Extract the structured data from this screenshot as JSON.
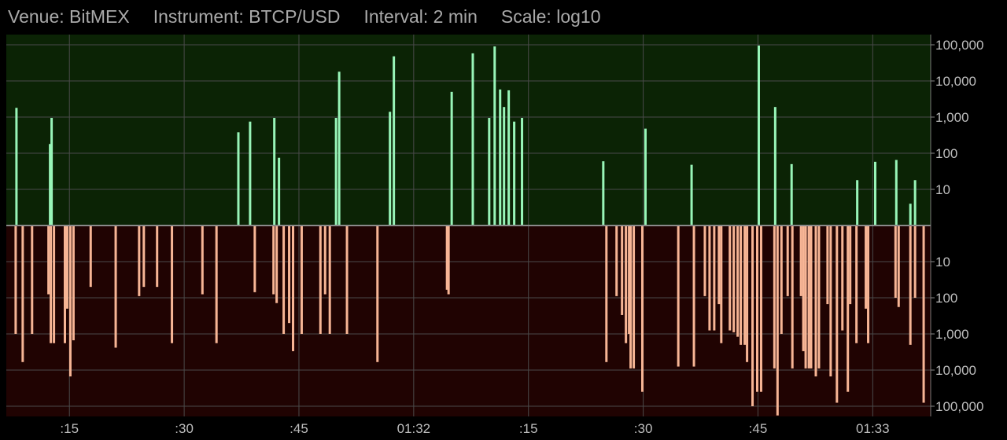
{
  "header": {
    "venue": "Venue: BitMEX",
    "instrument": "Instrument: BTCP/USD",
    "interval": "Interval: 2 min",
    "scale": "Scale: log10"
  },
  "colors": {
    "upper_bg": "#0b2305",
    "lower_bg": "#200302",
    "buy": "#98f5b8",
    "sell": "#f7b595",
    "grid": "#4a4a4a",
    "axis_text": "#bdbdbd"
  },
  "chart_data": {
    "type": "bar",
    "scale": "log10",
    "grid": true,
    "x_ticks": [
      ":15",
      ":30",
      ":45",
      "01:32",
      ":15",
      ":30",
      ":45",
      "01:33"
    ],
    "y_ticks_upper": [
      "100,000",
      "10,000",
      "1,000",
      "100",
      "10"
    ],
    "y_ticks_lower": [
      "10",
      "100",
      "1,000",
      "10,000",
      "100,000"
    ],
    "x_range": [
      0,
      1183
    ],
    "series": [
      {
        "side": "up",
        "points": [
          [
            13,
            1800
          ],
          [
            56,
            180
          ],
          [
            58,
            950
          ],
          [
            297,
            380
          ],
          [
            312,
            750
          ],
          [
            343,
            950
          ],
          [
            349,
            75
          ],
          [
            422,
            950
          ],
          [
            426,
            18000
          ],
          [
            491,
            1400
          ],
          [
            496,
            48000
          ],
          [
            570,
            5000
          ],
          [
            597,
            58000
          ],
          [
            618,
            950
          ],
          [
            625,
            90000
          ],
          [
            632,
            5800
          ],
          [
            637,
            1900
          ],
          [
            643,
            5500
          ],
          [
            650,
            750
          ],
          [
            660,
            950
          ],
          [
            764,
            60
          ],
          [
            818,
            480
          ],
          [
            877,
            48
          ],
          [
            963,
            95000
          ],
          [
            984,
            1900
          ],
          [
            1005,
            50
          ],
          [
            1089,
            18
          ],
          [
            1112,
            58
          ],
          [
            1139,
            65
          ],
          [
            1157,
            4
          ],
          [
            1163,
            18
          ]
        ]
      },
      {
        "side": "down",
        "points": [
          [
            12,
            1000
          ],
          [
            21,
            6000
          ],
          [
            33,
            1000
          ],
          [
            54,
            80
          ],
          [
            57,
            1800
          ],
          [
            61,
            1800
          ],
          [
            75,
            1800
          ],
          [
            78,
            200
          ],
          [
            82,
            15000
          ],
          [
            86,
            1500
          ],
          [
            108,
            50
          ],
          [
            140,
            2400
          ],
          [
            170,
            90
          ],
          [
            176,
            50
          ],
          [
            193,
            50
          ],
          [
            212,
            1800
          ],
          [
            251,
            80
          ],
          [
            269,
            1800
          ],
          [
            318,
            70
          ],
          [
            342,
            80
          ],
          [
            346,
            140
          ],
          [
            355,
            1000
          ],
          [
            362,
            500
          ],
          [
            367,
            3000
          ],
          [
            378,
            1000
          ],
          [
            402,
            1000
          ],
          [
            408,
            80
          ],
          [
            414,
            1000
          ],
          [
            436,
            1000
          ],
          [
            475,
            6000
          ],
          [
            564,
            60
          ],
          [
            566,
            80
          ],
          [
            768,
            6000
          ],
          [
            781,
            90
          ],
          [
            788,
            300
          ],
          [
            793,
            1800
          ],
          [
            797,
            1000
          ],
          [
            799,
            9000
          ],
          [
            803,
            9000
          ],
          [
            814,
            40000
          ],
          [
            860,
            8000
          ],
          [
            880,
            8000
          ],
          [
            894,
            90
          ],
          [
            900,
            800
          ],
          [
            906,
            800
          ],
          [
            912,
            150
          ],
          [
            915,
            1800
          ],
          [
            926,
            800
          ],
          [
            931,
            900
          ],
          [
            936,
            1200
          ],
          [
            940,
            2000
          ],
          [
            945,
            2000
          ],
          [
            948,
            6000
          ],
          [
            955,
            100000
          ],
          [
            961,
            40000
          ],
          [
            966,
            40000
          ],
          [
            983,
            9000
          ],
          [
            987,
            180000
          ],
          [
            992,
            1000
          ],
          [
            1000,
            90
          ],
          [
            1006,
            9000
          ],
          [
            1017,
            90
          ],
          [
            1020,
            3000
          ],
          [
            1023,
            9000
          ],
          [
            1027,
            9000
          ],
          [
            1030,
            9000
          ],
          [
            1036,
            15000
          ],
          [
            1040,
            9000
          ],
          [
            1051,
            150
          ],
          [
            1055,
            15000
          ],
          [
            1063,
            80000
          ],
          [
            1070,
            800
          ],
          [
            1077,
            40000
          ],
          [
            1080,
            150
          ],
          [
            1088,
            1800
          ],
          [
            1100,
            200
          ],
          [
            1103,
            1800
          ],
          [
            1138,
            100
          ],
          [
            1142,
            180
          ],
          [
            1157,
            2000
          ],
          [
            1163,
            100
          ],
          [
            1174,
            80000
          ]
        ]
      }
    ]
  }
}
